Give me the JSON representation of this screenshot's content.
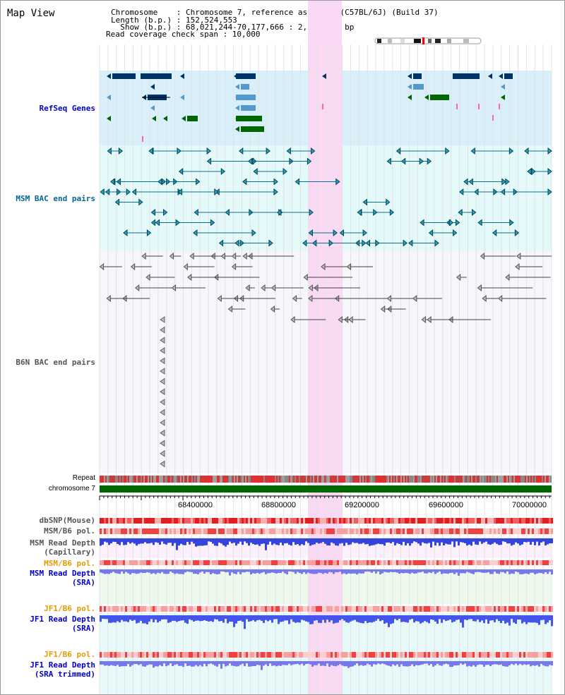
{
  "view": {
    "title": "Map View"
  },
  "info": {
    "chromosome_line": "Chromosome    : Chromosome 7, reference assembly (C57BL/6J) (Build 37)",
    "length_line": "Length (b.p.) : 152,524,553",
    "show_line": "  Show (b.p.) : 68,021,244-70,177,666 : 2,156,423 bp",
    "coverage_line": "Read coverage check span : 10,000"
  },
  "tracks": {
    "refseq": "RefSeq Genes",
    "msm_bac": "MSM BAC end pairs",
    "b6n_bac": "B6N BAC end pairs",
    "repeat": "Repeat",
    "chromosome": "chromosome 7",
    "dbsnp": "dbSNP(Mouse)",
    "msm_b6_pol": "MSM/B6 pol.",
    "msm_read_depth_cap": "MSM Read Depth\n(Capillary)",
    "msm_b6_pol_2": "MSM/B6 pol.",
    "msm_read_depth_sra": "MSM Read Depth\n(SRA)",
    "jf1_b6_pol": "JF1/B6 pol.",
    "jf1_read_depth_sra": "JF1 Read Depth\n(SRA)",
    "jf1_b6_pol_2": "JF1/B6 pol.",
    "jf1_read_depth_trim": "JF1 Read Depth\n(SRA trimmed)"
  },
  "axis": {
    "ticks": [
      "68400000",
      "68800000",
      "69200000",
      "69600000",
      "70000000"
    ]
  },
  "colors": {
    "refseq_bg": "#d9effa",
    "msm_bac_bg": "#e4f9f9",
    "highlight": "#f9d9f3",
    "refseq_label": "#0000cc",
    "msm_label": "#006699",
    "b6n_label": "#555555",
    "pol_label": "#e69a00",
    "depth_label": "#0000cc",
    "chromosome_bar": "#006600"
  }
}
